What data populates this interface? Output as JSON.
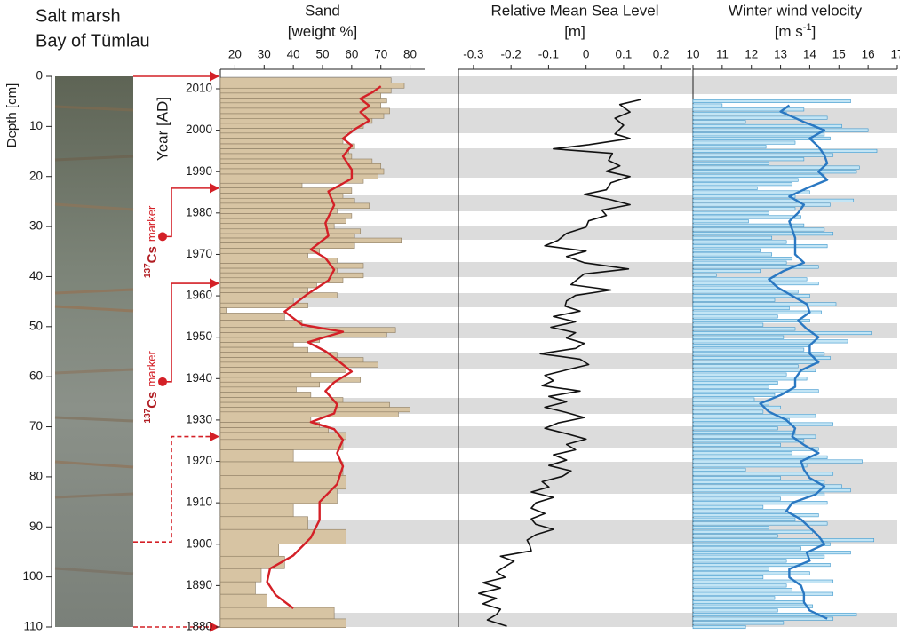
{
  "chart_data": [
    {
      "type": "core",
      "title": [
        "Salt marsh",
        "Bay of Tümlau"
      ],
      "ylabel": "Depth [cm]",
      "ylim": [
        0,
        110
      ],
      "yticks": [
        0,
        10,
        20,
        30,
        40,
        50,
        60,
        70,
        80,
        90,
        100,
        110
      ],
      "markers": [
        {
          "depth": 32,
          "isotope": "137",
          "element": "Cs",
          "text": "marker"
        },
        {
          "depth": 61,
          "isotope": "137",
          "element": "Cs",
          "text": "marker"
        }
      ],
      "tie_points": [
        {
          "depth": 0,
          "year": 2013,
          "line": "solid"
        },
        {
          "depth": 32,
          "year": 1986,
          "line": "solid"
        },
        {
          "depth": 61,
          "year": 1963,
          "line": "solid"
        },
        {
          "depth": 93,
          "year": 1926,
          "line": "dashed"
        },
        {
          "depth": 110,
          "year": 1880,
          "line": "dashed"
        }
      ]
    },
    {
      "type": "bar",
      "title": "Sand",
      "unit": "[weight %]",
      "ylabel": "Year [AD]",
      "xlim": [
        15,
        85
      ],
      "xticks": [
        20,
        30,
        40,
        50,
        60,
        70,
        80
      ],
      "ylim": [
        1880,
        2013
      ],
      "yticks": [
        1880,
        1890,
        1900,
        1910,
        1920,
        1930,
        1940,
        1950,
        1960,
        1970,
        1980,
        1990,
        2000,
        2010
      ],
      "series": [
        {
          "type": "bar",
          "color": "#d7c4a3",
          "x": [
            2012,
            2010.7,
            2009.6,
            2008.3,
            2007.2,
            2006,
            2004.6,
            2003.4,
            2002.3,
            2001,
            1999.9,
            1998.7,
            1997.4,
            1996,
            1995,
            1993.7,
            1992.4,
            1991.4,
            1990,
            1988.8,
            1987.7,
            1986.7,
            1985.4,
            1984.1,
            1983,
            1981.7,
            1980.5,
            1979.2,
            1978.1,
            1976.8,
            1975.5,
            1974.5,
            1973.4,
            1972.1,
            1970.8,
            1969.7,
            1968.5,
            1967.2,
            1966.1,
            1965,
            1963.7,
            1962.5,
            1961.4,
            1960.1,
            1958.8,
            1957.7,
            1956.5,
            1955.2,
            1953,
            1951.7,
            1950.5,
            1949.4,
            1948.1,
            1947,
            1945.7,
            1944.5,
            1943.4,
            1942.1,
            1940.8,
            1939.8,
            1938.5,
            1937.4,
            1936.1,
            1934.8,
            1933.7,
            1932.5,
            1931.4,
            1930.1,
            1928.8,
            1927.5,
            1926.5,
            1924.1,
            1921.5,
            1918.3,
            1914.9,
            1911.7,
            1908,
            1905.3,
            1901.8,
            1898.4,
            1895.8,
            1892.4,
            1889.4,
            1886.4,
            1883,
            1880.9
          ],
          "values": [
            73.5,
            78,
            73.5,
            70,
            72,
            70,
            73,
            71,
            67,
            64,
            60,
            58,
            57,
            61,
            59,
            60,
            67,
            70,
            71,
            69,
            64,
            43,
            60,
            57,
            61,
            66,
            55,
            60,
            58,
            54,
            63,
            61,
            77,
            61,
            49,
            45,
            55,
            64,
            55,
            64,
            57,
            48,
            45,
            55,
            40,
            45,
            17,
            37,
            43,
            75,
            72,
            49,
            40,
            45,
            55,
            64,
            69,
            58,
            46,
            63,
            49,
            41,
            46,
            57,
            73,
            80,
            76,
            46,
            49,
            52,
            58,
            57,
            40,
            57,
            58,
            55,
            40,
            45,
            58,
            35,
            37,
            29,
            27,
            31,
            54,
            58
          ]
        },
        {
          "type": "line",
          "color": "#d42027",
          "x": [
            2010.6,
            2009.1,
            2007.6,
            2005.9,
            2004.4,
            2002.3,
            2000.2,
            1998,
            1996.3,
            1993.7,
            1990.5,
            1988.3,
            1985.2,
            1981.9,
            1977.6,
            1974.5,
            1971.2,
            1969.1,
            1966.3,
            1963.7,
            1960.5,
            1956.2,
            1953,
            1951.3,
            1948.8,
            1946.6,
            1944.5,
            1941.7,
            1939.1,
            1937,
            1933.8,
            1931.6,
            1929.5,
            1927.8,
            1925.2,
            1922,
            1918.8,
            1914.5,
            1910.2,
            1905.9,
            1901.6,
            1897.3,
            1894.1,
            1890.9,
            1887.7,
            1884.5
          ],
          "values": [
            70,
            67,
            63,
            66,
            63,
            66,
            61,
            57,
            60,
            57,
            60,
            60,
            52,
            54,
            51,
            52,
            46,
            51,
            54,
            52,
            45,
            37,
            43,
            57,
            45,
            51,
            55,
            60,
            54,
            51,
            55,
            54,
            46,
            54,
            57,
            55,
            57,
            55,
            49,
            49,
            46,
            40,
            32,
            31,
            34,
            40
          ]
        }
      ]
    },
    {
      "type": "line",
      "title": "Relative Mean Sea Level",
      "unit": "[m]",
      "xlim": [
        -0.34,
        0.28
      ],
      "xticks": [
        -0.3,
        -0.2,
        -0.1,
        0,
        0.1,
        0.2
      ],
      "ylim": [
        1880,
        2013
      ],
      "series": [
        {
          "type": "line",
          "color": "#111111",
          "x": [
            2007.4,
            2006.2,
            2004.4,
            2002.9,
            2001.2,
            1999.1,
            1998,
            1996.5,
            1995.5,
            1994.4,
            1992.7,
            1991.4,
            1990.1,
            1988.8,
            1987.3,
            1985.6,
            1984.5,
            1983.2,
            1982,
            1980.7,
            1979.4,
            1978.1,
            1976.6,
            1975.1,
            1973.4,
            1972.1,
            1970.8,
            1969.5,
            1968,
            1966.5,
            1965.3,
            1964,
            1962.7,
            1961.4,
            1960.1,
            1958.8,
            1957.5,
            1956.3,
            1955,
            1953.7,
            1952.4,
            1951.1,
            1949.8,
            1948.5,
            1947.3,
            1946,
            1944.7,
            1943.4,
            1942.1,
            1940.8,
            1939.5,
            1938.3,
            1937,
            1935.7,
            1934.4,
            1933.1,
            1931.8,
            1930.6,
            1929.3,
            1928,
            1926.7,
            1925.4,
            1924.1,
            1922.8,
            1921.6,
            1920.3,
            1919,
            1917.7,
            1916.4,
            1915.1,
            1913.8,
            1912.6,
            1911.3,
            1910,
            1908.7,
            1907.4,
            1906.1,
            1904.8,
            1903.6,
            1902.3,
            1901,
            1899.7,
            1898.4,
            1897.1,
            1895.9,
            1894.6,
            1893.3,
            1892,
            1890.7,
            1889.4,
            1888.1,
            1886.9,
            1885.6,
            1884.3,
            1883,
            1881.7,
            1880.2
          ],
          "values": [
            0.146,
            0.09,
            0.117,
            0.077,
            0.1,
            0.077,
            0.117,
            0.007,
            -0.087,
            0.07,
            0.06,
            0.09,
            0.054,
            0.117,
            0.066,
            0.054,
            -0.005,
            0.066,
            0.117,
            0.042,
            0.054,
            0.007,
            0,
            -0.052,
            -0.075,
            -0.11,
            0,
            -0.052,
            -0.005,
            0.113,
            -0.005,
            -0.023,
            -0.04,
            0.066,
            -0.028,
            -0.052,
            -0.056,
            -0.016,
            -0.087,
            -0.028,
            -0.094,
            -0.028,
            -0.052,
            -0.005,
            -0.028,
            -0.122,
            -0.016,
            0.007,
            -0.052,
            -0.11,
            -0.087,
            -0.117,
            -0.016,
            -0.099,
            -0.052,
            -0.11,
            -0.052,
            -0.005,
            -0.075,
            -0.11,
            -0.052,
            0,
            -0.052,
            -0.028,
            -0.087,
            -0.052,
            -0.099,
            -0.04,
            -0.063,
            -0.117,
            -0.099,
            -0.146,
            -0.087,
            -0.134,
            -0.146,
            -0.11,
            -0.146,
            -0.134,
            -0.087,
            -0.134,
            -0.157,
            -0.15,
            -0.146,
            -0.228,
            -0.192,
            -0.216,
            -0.239,
            -0.216,
            -0.275,
            -0.228,
            -0.286,
            -0.239,
            -0.275,
            -0.228,
            -0.239,
            -0.263,
            -0.211
          ]
        }
      ]
    },
    {
      "type": "bar",
      "title": "Winter wind velocity",
      "unit": "[m s",
      "unit_sup": "-1",
      "unit_end": "]",
      "xlim": [
        10,
        17
      ],
      "xticks": [
        10,
        11,
        12,
        13,
        14,
        15,
        16,
        17
      ],
      "ylim": [
        1880,
        2013
      ],
      "series": [
        {
          "type": "bar",
          "color": "#c3e5f5",
          "edge": "#3d97cc",
          "x": [
            2007,
            2006,
            2005,
            2004,
            2003,
            2002,
            2001,
            2000,
            1999,
            1998,
            1997,
            1996,
            1995,
            1994,
            1993,
            1992,
            1991,
            1990,
            1989,
            1988,
            1987,
            1986,
            1985,
            1984,
            1983,
            1982,
            1981,
            1980,
            1979,
            1978,
            1977,
            1976,
            1975,
            1974,
            1973,
            1972,
            1971,
            1970,
            1969,
            1968,
            1967,
            1966,
            1965,
            1964,
            1963,
            1962,
            1961,
            1960,
            1959,
            1958,
            1957,
            1956,
            1955,
            1954,
            1953,
            1952,
            1951,
            1950,
            1949,
            1948,
            1947,
            1946,
            1945,
            1944,
            1943,
            1942,
            1941,
            1940,
            1939,
            1938,
            1937,
            1936,
            1935,
            1934,
            1933,
            1932,
            1931,
            1930,
            1929,
            1928,
            1927,
            1926,
            1925,
            1924,
            1923,
            1922,
            1921,
            1920,
            1919,
            1918,
            1917,
            1916,
            1915,
            1914,
            1913,
            1912,
            1911,
            1910,
            1909,
            1908,
            1907,
            1906,
            1905,
            1904,
            1903,
            1902,
            1901,
            1900,
            1899,
            1898,
            1897,
            1896,
            1895,
            1894,
            1893,
            1892,
            1891,
            1890,
            1889,
            1888,
            1887,
            1886,
            1885,
            1884,
            1883,
            1882,
            1881,
            1880
          ],
          "values": [
            15.4,
            11.0,
            13.8,
            13.2,
            14.6,
            11.8,
            15.1,
            16.0,
            14.5,
            14.7,
            13.5,
            12.5,
            16.3,
            14.8,
            13.8,
            12.6,
            15.7,
            15.6,
            14.5,
            13.6,
            13.4,
            12.2,
            14.0,
            13.5,
            15.5,
            14.7,
            13.5,
            12.6,
            13.7,
            11.9,
            13.8,
            14.5,
            14.8,
            12.7,
            13.2,
            14.6,
            12.3,
            12.7,
            13.4,
            13.2,
            14.3,
            12.3,
            10.8,
            13.9,
            14.3,
            12.9,
            13.6,
            14.0,
            12.8,
            14.9,
            13.3,
            14.4,
            12.9,
            14.0,
            12.4,
            13.5,
            16.1,
            13.1,
            15.3,
            14.0,
            13.8,
            14.5,
            14.7,
            14.3,
            13.6,
            14.2,
            13.2,
            13.9,
            12.9,
            12.6,
            14.3,
            12.8,
            12.1,
            12.6,
            13.0,
            12.4,
            14.2,
            13.3,
            14.8,
            12.9,
            13.5,
            14.2,
            13.8,
            13.0,
            14.3,
            13.4,
            14.6,
            15.8,
            13.9,
            11.8,
            14.8,
            13.0,
            14.5,
            15.1,
            15.4,
            14.5,
            13.0,
            14.6,
            12.4,
            13.2,
            14.3,
            13.5,
            14.6,
            12.6,
            14.1,
            12.9,
            16.2,
            14.7,
            13.7,
            15.4,
            14.5,
            13.2,
            14.7,
            12.6,
            14.0,
            12.4,
            14.8,
            13.2,
            13.4,
            14.8,
            12.8,
            13.8,
            14.1,
            12.9,
            15.6,
            14.8,
            13.1,
            11.8
          ]
        },
        {
          "type": "line",
          "color": "#2a78c2",
          "x": [
            2006,
            2004.5,
            2002,
            2000,
            1998,
            1996,
            1994,
            1992,
            1990,
            1988,
            1986,
            1984,
            1982,
            1980,
            1978,
            1976,
            1974,
            1972,
            1970,
            1968,
            1966,
            1964,
            1962,
            1960,
            1958,
            1956,
            1954,
            1952,
            1950,
            1948,
            1946,
            1944,
            1942,
            1940,
            1938,
            1936,
            1934,
            1932,
            1930,
            1928,
            1926,
            1924,
            1922,
            1920,
            1918,
            1916,
            1914,
            1912,
            1910,
            1908,
            1906,
            1904,
            1902,
            1900,
            1898,
            1896,
            1894,
            1892,
            1890,
            1888,
            1886,
            1884,
            1882
          ],
          "values": [
            13.3,
            13.0,
            13.8,
            14.5,
            14.0,
            14.3,
            14.5,
            14.6,
            14.3,
            14.6,
            13.9,
            13.3,
            13.8,
            13.6,
            13.3,
            13.4,
            13.5,
            13.5,
            13.5,
            13.8,
            13.1,
            12.6,
            12.9,
            13.4,
            13.9,
            14.0,
            13.6,
            13.9,
            14.3,
            14.0,
            14.0,
            14.3,
            13.7,
            13.5,
            13.5,
            13.0,
            12.3,
            12.6,
            13.2,
            13.5,
            13.4,
            13.8,
            14.3,
            13.7,
            13.8,
            14.0,
            14.5,
            14.2,
            13.4,
            13.2,
            13.7,
            14.0,
            14.3,
            14.5,
            13.9,
            14.0,
            13.3,
            13.3,
            13.7,
            13.8,
            13.8,
            14.0,
            14.6
          ]
        }
      ]
    }
  ]
}
